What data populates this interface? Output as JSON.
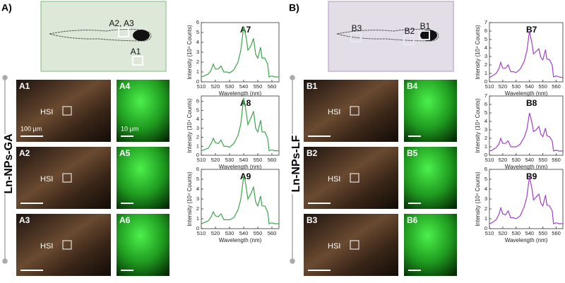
{
  "figure": {
    "panels": [
      {
        "label": "A)",
        "group": "Ln-NPs-GA",
        "overview": [
          "A2, A3",
          "A1"
        ],
        "tiles": [
          {
            "label": "A1",
            "hsi": "HSI",
            "scale": "100 µm"
          },
          {
            "label": "A2",
            "hsi": "HSI"
          },
          {
            "label": "A3",
            "hsi": "HSI"
          },
          {
            "label": "A4",
            "scale": "10 µm"
          },
          {
            "label": "A5"
          },
          {
            "label": "A6"
          }
        ]
      },
      {
        "label": "B)",
        "group": "Ln-NPs-LF",
        "overview": [
          "B3",
          "B2",
          "B1"
        ],
        "tiles": [
          {
            "label": "B1",
            "hsi": "HSI"
          },
          {
            "label": "B2",
            "hsi": "HSI"
          },
          {
            "label": "B3",
            "hsi": "HSI"
          },
          {
            "label": "B4"
          },
          {
            "label": "B5"
          },
          {
            "label": "B6"
          }
        ]
      }
    ]
  },
  "chart_data": [
    {
      "type": "line",
      "title": "A7",
      "x_label": "Wavelength (nm)",
      "y_label": "Intensity (10⁴ Counts)",
      "color": "#3aa64a",
      "x": [
        510,
        512,
        515,
        517,
        518.5,
        520,
        522,
        524,
        526,
        528,
        530,
        533,
        536,
        538,
        540,
        541,
        542,
        543,
        545,
        547,
        548.5,
        550,
        552,
        553,
        555,
        557,
        558,
        560,
        562,
        565
      ],
      "values": [
        0.5,
        0.6,
        0.8,
        1.2,
        1.8,
        1.3,
        1.3,
        1.6,
        1.0,
        1.0,
        0.9,
        1.2,
        2.0,
        3.2,
        5.6,
        5.0,
        4.3,
        3.2,
        3.6,
        4.4,
        2.8,
        2.4,
        3.5,
        2.4,
        2.4,
        1.8,
        0.5,
        0.6,
        0.5,
        0.5
      ],
      "xlim": [
        510,
        565
      ],
      "xticks": [
        510,
        520,
        530,
        540,
        550,
        560
      ],
      "ylim": [
        0,
        6
      ],
      "yticks": [
        0,
        1,
        2,
        3,
        4,
        5,
        6
      ]
    },
    {
      "type": "line",
      "title": "A8",
      "x_label": "Wavelength (nm)",
      "y_label": "Intensity (10⁴ Counts)",
      "color": "#3aa64a",
      "x": [
        510,
        512,
        515,
        517,
        518.5,
        520,
        522,
        524,
        526,
        528,
        530,
        533,
        536,
        538,
        540,
        541,
        542,
        543,
        545,
        547,
        548.5,
        550,
        552,
        553,
        555,
        557,
        558,
        560,
        562,
        565
      ],
      "values": [
        0.5,
        0.6,
        0.8,
        1.3,
        1.9,
        1.4,
        1.3,
        1.7,
        1.0,
        1.0,
        0.9,
        1.3,
        2.2,
        3.5,
        6.4,
        5.5,
        4.6,
        3.4,
        4.1,
        4.9,
        3.0,
        2.6,
        3.9,
        2.6,
        2.6,
        1.9,
        0.5,
        0.6,
        0.5,
        0.5
      ],
      "xlim": [
        510,
        565
      ],
      "xticks": [
        510,
        520,
        530,
        540,
        550,
        560
      ],
      "ylim": [
        0,
        6.6
      ],
      "yticks": [
        0,
        1,
        2,
        3,
        4,
        5,
        6
      ]
    },
    {
      "type": "line",
      "title": "A9",
      "x_label": "Wavelength (nm)",
      "y_label": "Intensity (10⁴ Counts)",
      "color": "#3aa64a",
      "x": [
        510,
        512,
        515,
        517,
        518.5,
        520,
        522,
        524,
        526,
        528,
        530,
        533,
        536,
        538,
        540,
        541,
        542,
        543,
        545,
        547,
        548.5,
        550,
        552,
        553,
        555,
        557,
        558,
        560,
        562,
        565
      ],
      "values": [
        0.5,
        0.6,
        0.8,
        1.2,
        1.7,
        1.3,
        1.2,
        1.5,
        0.9,
        0.9,
        0.9,
        1.1,
        1.9,
        3.0,
        5.3,
        4.9,
        4.0,
        3.0,
        3.5,
        4.2,
        2.7,
        2.3,
        3.3,
        2.3,
        2.3,
        1.7,
        0.5,
        0.6,
        0.5,
        0.5
      ],
      "xlim": [
        510,
        565
      ],
      "xticks": [
        510,
        520,
        530,
        540,
        550,
        560
      ],
      "ylim": [
        0,
        6
      ],
      "yticks": [
        0,
        1,
        2,
        3,
        4,
        5,
        6
      ]
    },
    {
      "type": "line",
      "title": "B7",
      "x_label": "Wavelength (nm)",
      "y_label": "Intensity (10⁴ Counts)",
      "color": "#a040c8",
      "x": [
        510,
        512,
        515,
        517,
        518.5,
        520,
        522,
        524,
        526,
        528,
        530,
        533,
        536,
        538,
        540,
        541,
        542,
        543,
        545,
        547,
        548.5,
        550,
        552,
        553,
        555,
        557,
        558,
        560,
        562,
        565
      ],
      "values": [
        0.5,
        0.7,
        1.0,
        1.5,
        2.3,
        1.6,
        1.6,
        2.0,
        1.2,
        1.2,
        1.1,
        1.5,
        2.4,
        3.6,
        6.0,
        5.2,
        4.4,
        3.3,
        3.6,
        3.9,
        2.9,
        2.6,
        3.8,
        2.7,
        2.6,
        2.0,
        0.6,
        0.7,
        0.6,
        0.5
      ],
      "xlim": [
        510,
        565
      ],
      "xticks": [
        510,
        520,
        530,
        540,
        550,
        560
      ],
      "ylim": [
        0,
        7
      ],
      "yticks": [
        0,
        1,
        2,
        3,
        4,
        5,
        6,
        7
      ]
    },
    {
      "type": "line",
      "title": "B8",
      "x_label": "Wavelength (nm)",
      "y_label": "Intensity (10⁴ Counts)",
      "color": "#a040c8",
      "x": [
        510,
        512,
        515,
        517,
        518.5,
        520,
        522,
        524,
        526,
        528,
        530,
        533,
        536,
        538,
        540,
        541,
        542,
        543,
        545,
        547,
        548.5,
        550,
        552,
        553,
        555,
        557,
        558,
        560,
        562,
        565
      ],
      "values": [
        0.5,
        0.6,
        0.9,
        1.3,
        2.0,
        1.4,
        1.4,
        1.7,
        1.0,
        1.0,
        1.0,
        1.3,
        2.1,
        3.0,
        5.0,
        4.4,
        3.7,
        2.8,
        3.0,
        3.4,
        2.5,
        2.2,
        3.2,
        2.3,
        2.2,
        1.7,
        0.5,
        0.6,
        0.5,
        0.5
      ],
      "xlim": [
        510,
        565
      ],
      "xticks": [
        510,
        520,
        530,
        540,
        550,
        560
      ],
      "ylim": [
        0,
        7
      ],
      "yticks": [
        0,
        1,
        2,
        3,
        4,
        5,
        6,
        7
      ]
    },
    {
      "type": "line",
      "title": "B9",
      "x_label": "Wavelength (nm)",
      "y_label": "Intensity (10⁴ Counts)",
      "color": "#a040c8",
      "x": [
        510,
        512,
        515,
        517,
        518.5,
        520,
        522,
        524,
        526,
        528,
        530,
        533,
        536,
        538,
        540,
        541,
        542,
        543,
        545,
        547,
        548.5,
        550,
        552,
        553,
        555,
        557,
        558,
        560,
        562,
        565
      ],
      "values": [
        0.5,
        0.6,
        0.9,
        1.4,
        2.1,
        1.5,
        1.4,
        1.8,
        1.1,
        1.1,
        1.0,
        1.3,
        2.2,
        3.2,
        5.3,
        4.6,
        3.9,
        2.9,
        3.2,
        3.5,
        2.6,
        2.3,
        3.4,
        2.4,
        2.3,
        1.8,
        0.5,
        0.6,
        0.5,
        0.5
      ],
      "xlim": [
        510,
        565
      ],
      "xticks": [
        510,
        520,
        530,
        540,
        550,
        560
      ],
      "ylim": [
        0,
        6
      ],
      "yticks": [
        0,
        1,
        2,
        3,
        4,
        5,
        6
      ]
    }
  ]
}
